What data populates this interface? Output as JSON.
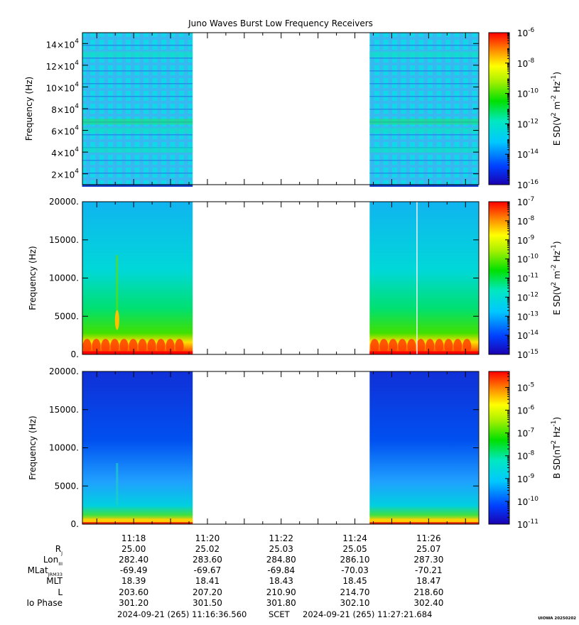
{
  "title": "Juno Waves Burst Low Frequency Receivers",
  "chart_data": [
    {
      "type": "heatmap",
      "panel": "E-field spectrogram (upper, extended frequency)",
      "ylabel": "Frequency (Hz)",
      "ylim": [
        10000,
        150000
      ],
      "yticks": [
        20000,
        40000,
        60000,
        80000,
        100000,
        120000,
        140000
      ],
      "ytick_labels": [
        {
          "base": "2×10",
          "exp": "4"
        },
        {
          "base": "4×10",
          "exp": "4"
        },
        {
          "base": "6×10",
          "exp": "4"
        },
        {
          "base": "8×10",
          "exp": "4"
        },
        {
          "base": "10×10",
          "exp": "4"
        },
        {
          "base": "12×10",
          "exp": "4"
        },
        {
          "base": "14×10",
          "exp": "4"
        }
      ],
      "data_intervals": [
        [
          "11:16:36",
          "11:19:36"
        ],
        [
          "11:24:24",
          "11:27:21"
        ]
      ],
      "colorbar": {
        "label_pre": "E SD(V",
        "label_sup1": "2",
        "label_mid": " m",
        "label_sup2": "-2",
        "label_mid2": " Hz",
        "label_sup3": "-1",
        "label_post": ")",
        "scale": "log",
        "range": [
          -16,
          -6
        ],
        "ticks": [
          -6,
          -8,
          -10,
          -12,
          -14,
          -16
        ]
      }
    },
    {
      "type": "heatmap",
      "panel": "E-field spectrogram (lower, 0-20 kHz)",
      "ylabel": "Frequency (Hz)",
      "ylim": [
        0,
        20000
      ],
      "yticks": [
        0,
        5000,
        10000,
        15000,
        20000
      ],
      "ytick_labels": [
        "0.",
        "5000.",
        "10000.",
        "15000.",
        "20000."
      ],
      "data_intervals": [
        [
          "11:16:36",
          "11:19:36"
        ],
        [
          "11:24:24",
          "11:27:21"
        ]
      ],
      "colorbar": {
        "label_pre": "E SD(V",
        "label_sup1": "2",
        "label_mid": " m",
        "label_sup2": "-2",
        "label_mid2": " Hz",
        "label_sup3": "-1",
        "label_post": ")",
        "scale": "log",
        "range": [
          -15,
          -7
        ],
        "ticks": [
          -7,
          -8,
          -9,
          -10,
          -11,
          -12,
          -13,
          -14,
          -15
        ]
      }
    },
    {
      "type": "heatmap",
      "panel": "B-field spectrogram (0-20 kHz)",
      "ylabel": "Frequency (Hz)",
      "ylim": [
        0,
        20000
      ],
      "yticks": [
        0,
        5000,
        10000,
        15000,
        20000
      ],
      "ytick_labels": [
        "0.",
        "5000.",
        "10000.",
        "15000.",
        "20000."
      ],
      "data_intervals": [
        [
          "11:16:36",
          "11:19:36"
        ],
        [
          "11:24:24",
          "11:27:21"
        ]
      ],
      "colorbar": {
        "label_pre": "B SD(nT",
        "label_sup1": "2",
        "label_mid": " Hz",
        "label_sup2": "-1",
        "label_post": ")",
        "scale": "log",
        "range": [
          -11,
          -4.3
        ],
        "ticks": [
          -5,
          -6,
          -7,
          -8,
          -9,
          -10,
          -11
        ]
      }
    }
  ],
  "x_axis": {
    "start": "11:16:36.560",
    "end": "11:27:21.684",
    "tick_labels": [
      "11:18",
      "11:20",
      "11:22",
      "11:24",
      "11:26"
    ]
  },
  "ephemeris": {
    "rows": [
      {
        "label": "R",
        "sub": "J",
        "values": [
          "25.00",
          "25.02",
          "25.03",
          "25.05",
          "25.07"
        ]
      },
      {
        "label": "Lon",
        "sub": "III",
        "values": [
          "282.40",
          "283.60",
          "284.80",
          "286.10",
          "287.30"
        ]
      },
      {
        "label": "MLat",
        "sub": "JRM33",
        "values": [
          "-69.49",
          "-69.67",
          "-69.84",
          "-70.03",
          "-70.21"
        ]
      },
      {
        "label": "MLT",
        "sub": "",
        "values": [
          "18.39",
          "18.41",
          "18.43",
          "18.45",
          "18.47"
        ]
      },
      {
        "label": "L",
        "sub": "",
        "values": [
          "203.60",
          "207.20",
          "210.90",
          "214.70",
          "218.60"
        ]
      },
      {
        "label": "Io Phase",
        "sub": "",
        "values": [
          "301.20",
          "301.50",
          "301.80",
          "302.10",
          "302.40"
        ]
      }
    ]
  },
  "footer": {
    "start": "2024-09-21 (265) 11:16:36.560",
    "scet": "SCET",
    "end": "2024-09-21 (265) 11:27:21.684",
    "credit": "UIOWA 20250202"
  }
}
